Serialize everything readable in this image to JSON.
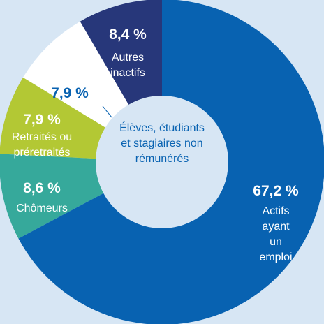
{
  "chart_data": {
    "type": "pie",
    "donut": true,
    "categories": [
      "Actifs ayant\nun emploi",
      "Chômeurs",
      "Retraités ou\npréretraités",
      "Élèves, étudiants\net stagiaires non\nrémunérés",
      "Autres\ninactifs"
    ],
    "values": [
      67.2,
      8.6,
      7.9,
      7.9,
      8.4
    ],
    "value_labels": [
      "67,2 %",
      "8,6 %",
      "7,9 %",
      "7,9 %",
      "8,4 %"
    ],
    "colors": [
      "#0862b1",
      "#36a99b",
      "#b3c834",
      "#ffffff",
      "#27377a"
    ]
  }
}
